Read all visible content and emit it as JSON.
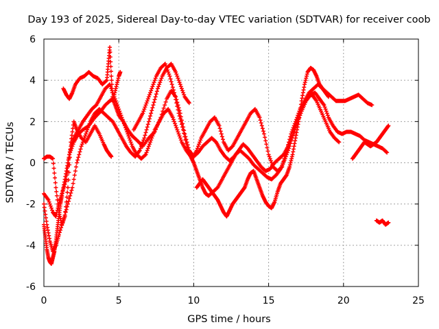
{
  "chart_data": {
    "type": "scatter",
    "title": "Day 193 of 2025, Sidereal Day-to-day VTEC variation (SDTVAR) for receiver coob",
    "xlabel": "GPS time / hours",
    "ylabel": "SDTVAR / TECUs",
    "xlim": [
      0,
      25
    ],
    "ylim": [
      -6,
      6
    ],
    "xticks": [
      "0",
      "5",
      "10",
      "15",
      "20",
      "25"
    ],
    "yticks": [
      "-6",
      "-4",
      "-2",
      "0",
      "2",
      "4",
      "6"
    ],
    "grid": true,
    "marker": "plus",
    "color": "#ff0000",
    "series": [
      {
        "x": [
          0.0,
          0.3,
          0.6,
          0.8,
          1.0,
          1.2,
          1.5,
          1.7,
          2.0,
          2.3,
          2.6,
          3.0,
          3.4,
          3.8,
          4.1,
          4.4,
          4.6,
          4.8,
          5.0,
          5.3,
          5.6,
          5.9,
          6.2,
          6.6,
          7.0,
          7.4,
          7.8,
          8.2,
          8.5,
          8.8,
          9.1,
          9.4,
          9.7,
          10.0,
          10.3,
          10.6,
          10.9,
          11.2,
          11.5,
          11.8,
          12.1,
          12.4,
          12.7,
          13.0,
          13.3,
          13.6,
          13.9,
          14.2,
          14.5,
          14.8,
          15.1,
          15.4,
          15.7,
          16.0,
          16.3,
          16.6,
          16.9,
          17.2,
          17.5,
          17.8,
          18.1,
          18.4,
          18.7,
          19.0,
          19.3,
          19.6,
          19.9,
          20.2,
          20.5,
          20.8,
          21.1,
          21.4,
          21.7,
          22.0,
          22.3,
          22.6,
          22.9
        ],
        "y": [
          -1.5,
          -1.8,
          -2.4,
          -2.6,
          -2.0,
          -1.5,
          -0.8,
          0.4,
          1.0,
          1.4,
          1.6,
          1.8,
          2.2,
          2.5,
          2.8,
          3.0,
          3.1,
          2.7,
          2.3,
          2.0,
          1.6,
          1.3,
          1.1,
          0.8,
          1.2,
          1.5,
          2.2,
          3.1,
          3.5,
          3.2,
          2.4,
          1.4,
          0.6,
          0.3,
          0.5,
          0.8,
          1.0,
          1.2,
          1.0,
          0.6,
          0.3,
          0.1,
          0.3,
          0.6,
          0.9,
          0.7,
          0.4,
          0.1,
          -0.2,
          -0.4,
          -0.3,
          0.0,
          0.2,
          0.4,
          0.8,
          1.3,
          1.9,
          2.5,
          3.0,
          3.3,
          3.4,
          3.1,
          2.8,
          2.2,
          1.8,
          1.5,
          1.4,
          1.5,
          1.5,
          1.4,
          1.3,
          1.1,
          1.0,
          0.9,
          0.8,
          0.7,
          0.5
        ]
      },
      {
        "x": [
          0.0,
          0.2,
          0.4,
          0.6,
          0.8,
          1.0,
          1.2,
          1.4,
          1.6,
          1.8,
          2.0,
          2.2,
          2.5,
          2.8,
          3.1,
          3.4,
          3.7,
          4.0,
          4.2,
          4.4,
          4.5
        ],
        "y": [
          0.2,
          0.3,
          0.3,
          0.2,
          -1.2,
          -2.4,
          -3.0,
          -2.6,
          -1.2,
          1.0,
          2.0,
          1.6,
          1.2,
          1.0,
          1.4,
          1.8,
          1.4,
          0.9,
          0.6,
          0.4,
          0.3
        ]
      },
      {
        "x": [
          0.0,
          0.1,
          0.2,
          0.3,
          0.4,
          0.5,
          0.6,
          0.7,
          0.8,
          0.9,
          1.0,
          1.1,
          1.2,
          1.4,
          1.6,
          1.8,
          2.0,
          2.3,
          2.6,
          2.9,
          3.2,
          3.5,
          3.8,
          4.1,
          4.4,
          4.7,
          5.0,
          5.3,
          5.6,
          5.9,
          6.2,
          6.5,
          6.8,
          7.1,
          7.4,
          7.7,
          8.0,
          8.3,
          8.6,
          8.9,
          9.2,
          9.5,
          9.8,
          10.0,
          10.2,
          10.4,
          10.6,
          10.8,
          11.0,
          11.3,
          11.6,
          11.9,
          12.2,
          12.5,
          12.8,
          13.1,
          13.4,
          13.7,
          14.0,
          14.3,
          14.6,
          14.9,
          15.2,
          15.5,
          15.8,
          16.1,
          16.4,
          16.7,
          17.0,
          17.3,
          17.6,
          17.9,
          18.2,
          18.5,
          18.8,
          19.1,
          19.4,
          19.7
        ],
        "y": [
          -3.0,
          -3.6,
          -4.2,
          -4.6,
          -4.8,
          -4.9,
          -4.6,
          -4.3,
          -3.8,
          -3.2,
          -2.6,
          -2.0,
          -1.6,
          -0.8,
          0.0,
          0.8,
          1.2,
          1.6,
          2.0,
          2.3,
          2.6,
          2.8,
          3.2,
          3.6,
          3.8,
          3.2,
          2.6,
          2.0,
          1.4,
          0.8,
          0.4,
          0.2,
          0.4,
          1.0,
          1.6,
          2.0,
          2.4,
          2.6,
          2.2,
          1.6,
          1.0,
          0.6,
          0.3,
          0.0,
          -0.4,
          -0.8,
          -1.2,
          -1.5,
          -1.6,
          -1.4,
          -1.2,
          -0.8,
          -0.4,
          0.0,
          0.4,
          0.6,
          0.4,
          0.2,
          -0.1,
          -0.3,
          -0.5,
          -0.7,
          -0.8,
          -0.6,
          -0.3,
          0.2,
          0.8,
          1.6,
          2.3,
          2.8,
          3.2,
          3.3,
          3.0,
          2.5,
          2.0,
          1.5,
          1.2,
          1.0
        ]
      },
      {
        "x": [
          0.0,
          0.2,
          0.4,
          0.6,
          0.8,
          1.0,
          1.3,
          1.6,
          1.9,
          2.2,
          2.5,
          2.8,
          3.1,
          3.4,
          3.7,
          4.0,
          4.3,
          4.6,
          4.9,
          5.2,
          5.5,
          5.8,
          6.1,
          6.4,
          6.7,
          7.0,
          7.3,
          7.6,
          7.9,
          8.2,
          8.5,
          8.8,
          9.1,
          9.4,
          9.7
        ],
        "y": [
          -2.0,
          -3.0,
          -3.8,
          -4.3,
          -4.0,
          -3.5,
          -2.8,
          -2.0,
          -1.2,
          0.0,
          0.8,
          1.4,
          2.0,
          2.4,
          2.6,
          2.4,
          2.2,
          2.0,
          1.6,
          1.2,
          0.8,
          0.5,
          0.3,
          0.6,
          1.2,
          2.0,
          2.8,
          3.6,
          4.2,
          4.6,
          4.8,
          4.4,
          3.8,
          3.2,
          2.9
        ]
      },
      {
        "x": [
          1.3,
          1.5,
          1.7,
          1.9,
          2.1,
          2.4,
          2.7,
          3.0,
          3.3,
          3.6,
          3.9,
          4.2,
          4.3,
          4.4,
          4.5,
          4.6,
          4.8,
          5.0,
          5.1
        ],
        "y": [
          3.6,
          3.3,
          3.1,
          3.4,
          3.8,
          4.1,
          4.2,
          4.4,
          4.2,
          4.1,
          3.8,
          4.0,
          4.8,
          5.6,
          4.2,
          3.0,
          3.6,
          4.2,
          4.4
        ]
      },
      {
        "x": [
          6.0,
          6.3,
          6.6,
          6.9,
          7.2,
          7.5,
          7.8,
          8.1,
          8.4,
          8.7,
          9.0,
          9.3,
          9.6,
          9.9,
          10.2,
          10.5,
          10.8,
          11.1,
          11.4,
          11.7,
          12.0,
          12.3,
          12.6,
          12.9,
          13.2,
          13.5,
          13.8,
          14.1,
          14.4,
          14.7,
          15.0,
          15.3,
          15.6,
          15.9,
          16.2,
          16.5,
          16.8,
          17.1,
          17.4,
          17.7,
          18.0,
          18.3,
          18.6,
          18.9,
          19.2,
          19.5,
          19.8,
          20.1,
          20.4,
          20.7,
          21.0,
          21.3,
          21.6,
          21.9
        ],
        "y": [
          1.6,
          2.0,
          2.4,
          3.0,
          3.6,
          4.2,
          4.6,
          4.8,
          4.2,
          3.4,
          2.4,
          1.6,
          0.6,
          0.2,
          0.6,
          1.2,
          1.6,
          2.0,
          2.2,
          1.8,
          1.0,
          0.6,
          0.8,
          1.2,
          1.6,
          2.0,
          2.4,
          2.6,
          2.2,
          1.4,
          0.4,
          -0.2,
          -0.4,
          -0.2,
          0.6,
          1.4,
          2.0,
          2.6,
          3.0,
          3.4,
          3.6,
          3.8,
          3.6,
          3.4,
          3.2,
          3.0,
          3.0,
          3.0,
          3.1,
          3.2,
          3.3,
          3.1,
          2.9,
          2.8
        ]
      },
      {
        "x": [
          10.2,
          10.4,
          10.6,
          10.8,
          11.0,
          11.2,
          11.4,
          11.6,
          11.8,
          12.0,
          12.2,
          12.4,
          12.6,
          12.8,
          13.0,
          13.2,
          13.4,
          13.6,
          13.8,
          14.0,
          14.2,
          14.4,
          14.6,
          14.8,
          15.0,
          15.2,
          15.4,
          15.6,
          15.8,
          16.0,
          16.2,
          16.4,
          16.6,
          16.8,
          17.0,
          17.2,
          17.4,
          17.6,
          17.8,
          18.0,
          18.2,
          18.4,
          18.6,
          18.8,
          19.0
        ],
        "y": [
          -1.2,
          -1.0,
          -0.8,
          -1.0,
          -1.2,
          -1.4,
          -1.6,
          -1.8,
          -2.1,
          -2.4,
          -2.6,
          -2.3,
          -2.0,
          -1.8,
          -1.6,
          -1.4,
          -1.2,
          -0.8,
          -0.5,
          -0.4,
          -0.8,
          -1.2,
          -1.6,
          -1.9,
          -2.1,
          -2.2,
          -1.9,
          -1.4,
          -1.0,
          -0.8,
          -0.6,
          -0.2,
          0.4,
          1.2,
          2.0,
          3.0,
          3.8,
          4.4,
          4.6,
          4.5,
          4.2,
          3.8,
          3.6,
          3.4,
          3.2
        ]
      },
      {
        "x": [
          20.6,
          20.8,
          21.0,
          21.2,
          21.4,
          21.6,
          21.8,
          22.0,
          22.2,
          22.4,
          22.6,
          22.8,
          23.0
        ],
        "y": [
          0.2,
          0.4,
          0.6,
          0.8,
          1.0,
          0.9,
          0.8,
          0.9,
          1.0,
          1.2,
          1.4,
          1.6,
          1.8
        ]
      },
      {
        "x": [
          22.2,
          22.4,
          22.6,
          22.8,
          23.0
        ],
        "y": [
          -2.8,
          -2.9,
          -2.8,
          -3.0,
          -2.9
        ]
      }
    ]
  }
}
